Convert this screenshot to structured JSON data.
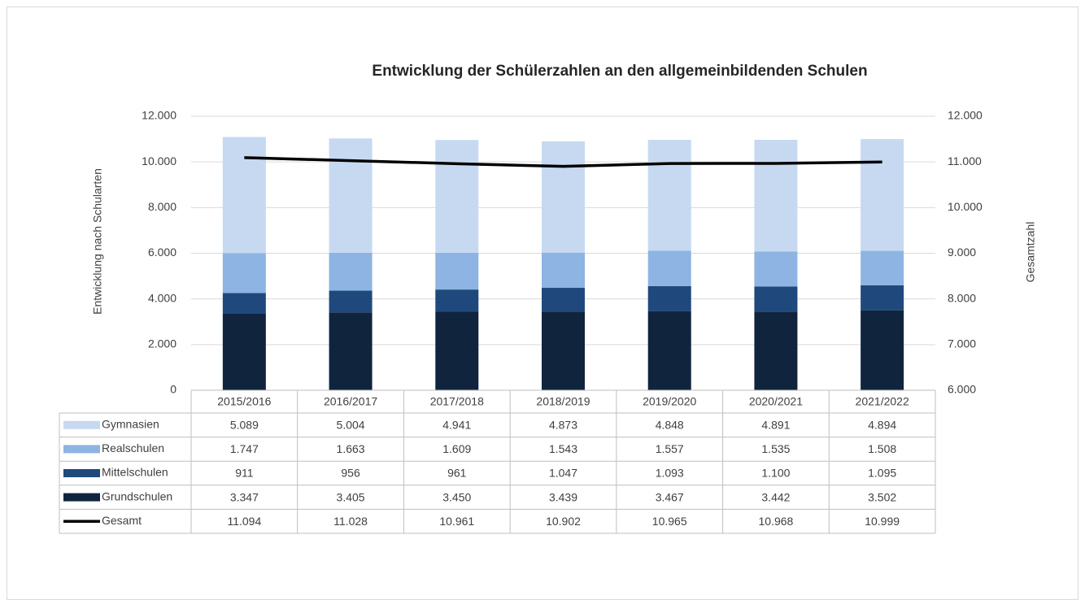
{
  "chart_data": {
    "type": "bar",
    "stacked": true,
    "title": "Entwicklung der Schülerzahlen an den allgemeinbildenden Schulen",
    "ylabel": "Entwicklung nach Schularten",
    "y2label": "Gesamtzahl",
    "categories": [
      "2015/2016",
      "2016/2017",
      "2017/2018",
      "2018/2019",
      "2019/2020",
      "2020/2021",
      "2021/2022"
    ],
    "series": [
      {
        "name": "Gymnasien",
        "color": "#c6d9f1",
        "values": [
          5089,
          5004,
          4941,
          4873,
          4848,
          4891,
          4894
        ],
        "value_labels": [
          "5.089",
          "5.004",
          "4.941",
          "4.873",
          "4.848",
          "4.891",
          "4.894"
        ]
      },
      {
        "name": "Realschulen",
        "color": "#8db4e2",
        "values": [
          1747,
          1663,
          1609,
          1543,
          1557,
          1535,
          1508
        ],
        "value_labels": [
          "1.747",
          "1.663",
          "1.609",
          "1.543",
          "1.557",
          "1.535",
          "1.508"
        ]
      },
      {
        "name": "Mittelschulen",
        "color": "#1f497d",
        "values": [
          911,
          956,
          961,
          1047,
          1093,
          1100,
          1095
        ],
        "value_labels": [
          "911",
          "956",
          "961",
          "1.047",
          "1.093",
          "1.100",
          "1.095"
        ]
      },
      {
        "name": "Grundschulen",
        "color": "#10243e",
        "values": [
          3347,
          3405,
          3450,
          3439,
          3467,
          3442,
          3502
        ],
        "value_labels": [
          "3.347",
          "3.405",
          "3.450",
          "3.439",
          "3.467",
          "3.442",
          "3.502"
        ]
      },
      {
        "name": "Gesamt",
        "type": "line",
        "axis": "y2",
        "color": "#000000",
        "values": [
          11094,
          11028,
          10961,
          10902,
          10965,
          10968,
          10999
        ],
        "value_labels": [
          "11.094",
          "11.028",
          "10.961",
          "10.902",
          "10.965",
          "10.968",
          "10.999"
        ]
      }
    ],
    "ylim": [
      0,
      12000
    ],
    "yticks": [
      0,
      {
        "value": 2000,
        "label": "2.000"
      },
      {
        "value": 4000,
        "label": "4.000"
      },
      {
        "value": 6000,
        "label": "6.000"
      },
      {
        "value": 8000,
        "label": "8.000"
      },
      {
        "value": 10000,
        "label": "10.000"
      },
      {
        "value": 12000,
        "label": "12.000"
      }
    ],
    "y2lim": [
      6000,
      12000
    ],
    "y2ticks": [
      {
        "value": 6000,
        "label": "6.000"
      },
      {
        "value": 7000,
        "label": "7.000"
      },
      {
        "value": 8000,
        "label": "8.000"
      },
      {
        "value": 9000,
        "label": "9.000"
      },
      {
        "value": 10000,
        "label": "10.000"
      },
      {
        "value": 11000,
        "label": "11.000"
      },
      {
        "value": 12000,
        "label": "12.000"
      }
    ],
    "grid": true
  }
}
